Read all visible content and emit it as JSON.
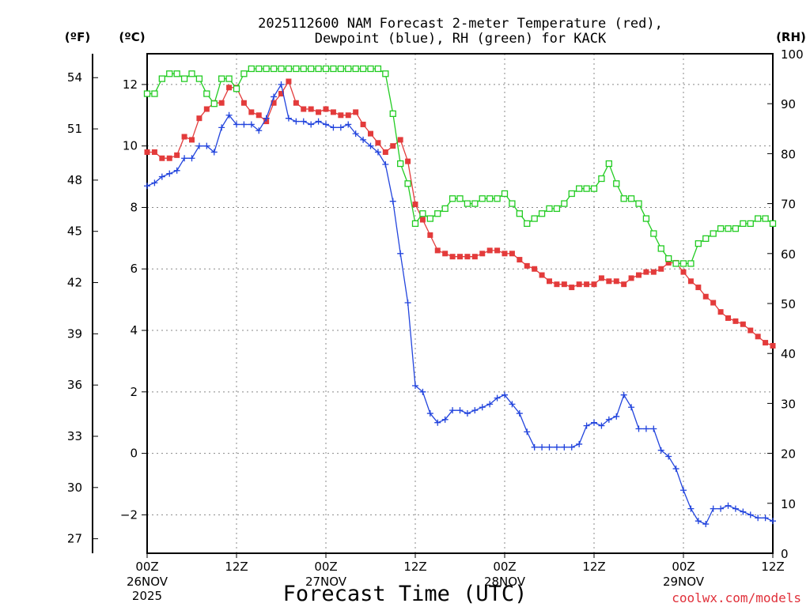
{
  "chart_data": {
    "type": "line",
    "title_line1": "2025112600 NAM Forecast 2-meter Temperature (red),",
    "title_line2": "Dewpoint (blue), RH (green) for KACK",
    "xlabel": "Forecast Time (UTC)",
    "credit": "coolwx.com/models",
    "unit_f": "(ºF)",
    "unit_c": "(ºC)",
    "unit_rh": "(RH)",
    "x_range_hours": [
      0,
      84
    ],
    "ylim_c": [
      -3.25,
      13.0
    ],
    "ylim_rh": [
      0,
      100
    ],
    "ticks_c": [
      -2,
      0,
      2,
      4,
      6,
      8,
      10,
      12
    ],
    "ticks_f": [
      27,
      30,
      33,
      36,
      39,
      42,
      45,
      48,
      51,
      54
    ],
    "ticks_rh": [
      0,
      10,
      20,
      30,
      40,
      50,
      60,
      70,
      80,
      90,
      100
    ],
    "grid": true,
    "x_ticks": [
      {
        "hour": 0,
        "label": "00Z",
        "date": "26NOV",
        "year": "2025"
      },
      {
        "hour": 12,
        "label": "12Z",
        "date": "",
        "year": ""
      },
      {
        "hour": 24,
        "label": "00Z",
        "date": "27NOV",
        "year": ""
      },
      {
        "hour": 36,
        "label": "12Z",
        "date": "",
        "year": ""
      },
      {
        "hour": 48,
        "label": "00Z",
        "date": "28NOV",
        "year": ""
      },
      {
        "hour": 60,
        "label": "12Z",
        "date": "",
        "year": ""
      },
      {
        "hour": 72,
        "label": "00Z",
        "date": "29NOV",
        "year": ""
      },
      {
        "hour": 84,
        "label": "12Z",
        "date": "",
        "year": ""
      }
    ],
    "series": [
      {
        "name": "Temperature",
        "color": "#e33b3b",
        "marker": "filled-square",
        "axis": "C",
        "values": [
          9.8,
          9.8,
          9.6,
          9.6,
          9.7,
          10.3,
          10.2,
          10.9,
          11.2,
          11.4,
          11.4,
          11.9,
          11.9,
          11.4,
          11.1,
          11.0,
          10.8,
          11.4,
          11.7,
          12.1,
          11.4,
          11.2,
          11.2,
          11.1,
          11.2,
          11.1,
          11.0,
          11.0,
          11.1,
          10.7,
          10.4,
          10.1,
          9.8,
          10.0,
          10.2,
          9.5,
          8.1,
          7.6,
          7.1,
          6.6,
          6.5,
          6.4,
          6.4,
          6.4,
          6.4,
          6.5,
          6.6,
          6.6,
          6.5,
          6.5,
          6.3,
          6.1,
          6.0,
          5.8,
          5.6,
          5.5,
          5.5,
          5.4,
          5.5,
          5.5,
          5.5,
          5.7,
          5.6,
          5.6,
          5.5,
          5.7,
          5.8,
          5.9,
          5.9,
          6.0,
          6.2,
          6.2,
          5.9,
          5.6,
          5.4,
          5.1,
          4.9,
          4.6,
          4.4,
          4.3,
          4.2,
          4.0,
          3.8,
          3.6,
          3.5
        ]
      },
      {
        "name": "Dewpoint",
        "color": "#2244dd",
        "marker": "plus",
        "axis": "C",
        "values": [
          8.7,
          8.8,
          9.0,
          9.1,
          9.2,
          9.6,
          9.6,
          10.0,
          10.0,
          9.8,
          10.6,
          11.0,
          10.7,
          10.7,
          10.7,
          10.5,
          10.9,
          11.6,
          12.0,
          10.9,
          10.8,
          10.8,
          10.7,
          10.8,
          10.7,
          10.6,
          10.6,
          10.7,
          10.4,
          10.2,
          10.0,
          9.8,
          9.4,
          8.2,
          6.5,
          4.9,
          2.2,
          2.0,
          1.3,
          1.0,
          1.1,
          1.4,
          1.4,
          1.3,
          1.4,
          1.5,
          1.6,
          1.8,
          1.9,
          1.6,
          1.3,
          0.7,
          0.2,
          0.2,
          0.2,
          0.2,
          0.2,
          0.2,
          0.3,
          0.9,
          1.0,
          0.9,
          1.1,
          1.2,
          1.9,
          1.5,
          0.8,
          0.8,
          0.8,
          0.1,
          -0.1,
          -0.5,
          -1.2,
          -1.8,
          -2.2,
          -2.3,
          -1.8,
          -1.8,
          -1.7,
          -1.8,
          -1.9,
          -2.0,
          -2.1,
          -2.1,
          -2.2
        ]
      },
      {
        "name": "RH",
        "color": "#22cc22",
        "marker": "open-square",
        "axis": "RH",
        "values": [
          92,
          92,
          95,
          96,
          96,
          95,
          96,
          95,
          92,
          90,
          95,
          95,
          93,
          96,
          97,
          97,
          97,
          97,
          97,
          97,
          97,
          97,
          97,
          97,
          97,
          97,
          97,
          97,
          97,
          97,
          97,
          97,
          96,
          88,
          78,
          74,
          66,
          68,
          67,
          68,
          69,
          71,
          71,
          70,
          70,
          71,
          71,
          71,
          72,
          70,
          68,
          66,
          67,
          68,
          69,
          69,
          70,
          72,
          73,
          73,
          73,
          75,
          78,
          74,
          71,
          71,
          70,
          67,
          64,
          61,
          59,
          58,
          58,
          58,
          62,
          63,
          64,
          65,
          65,
          65,
          66,
          66,
          67,
          67,
          66
        ]
      }
    ]
  }
}
